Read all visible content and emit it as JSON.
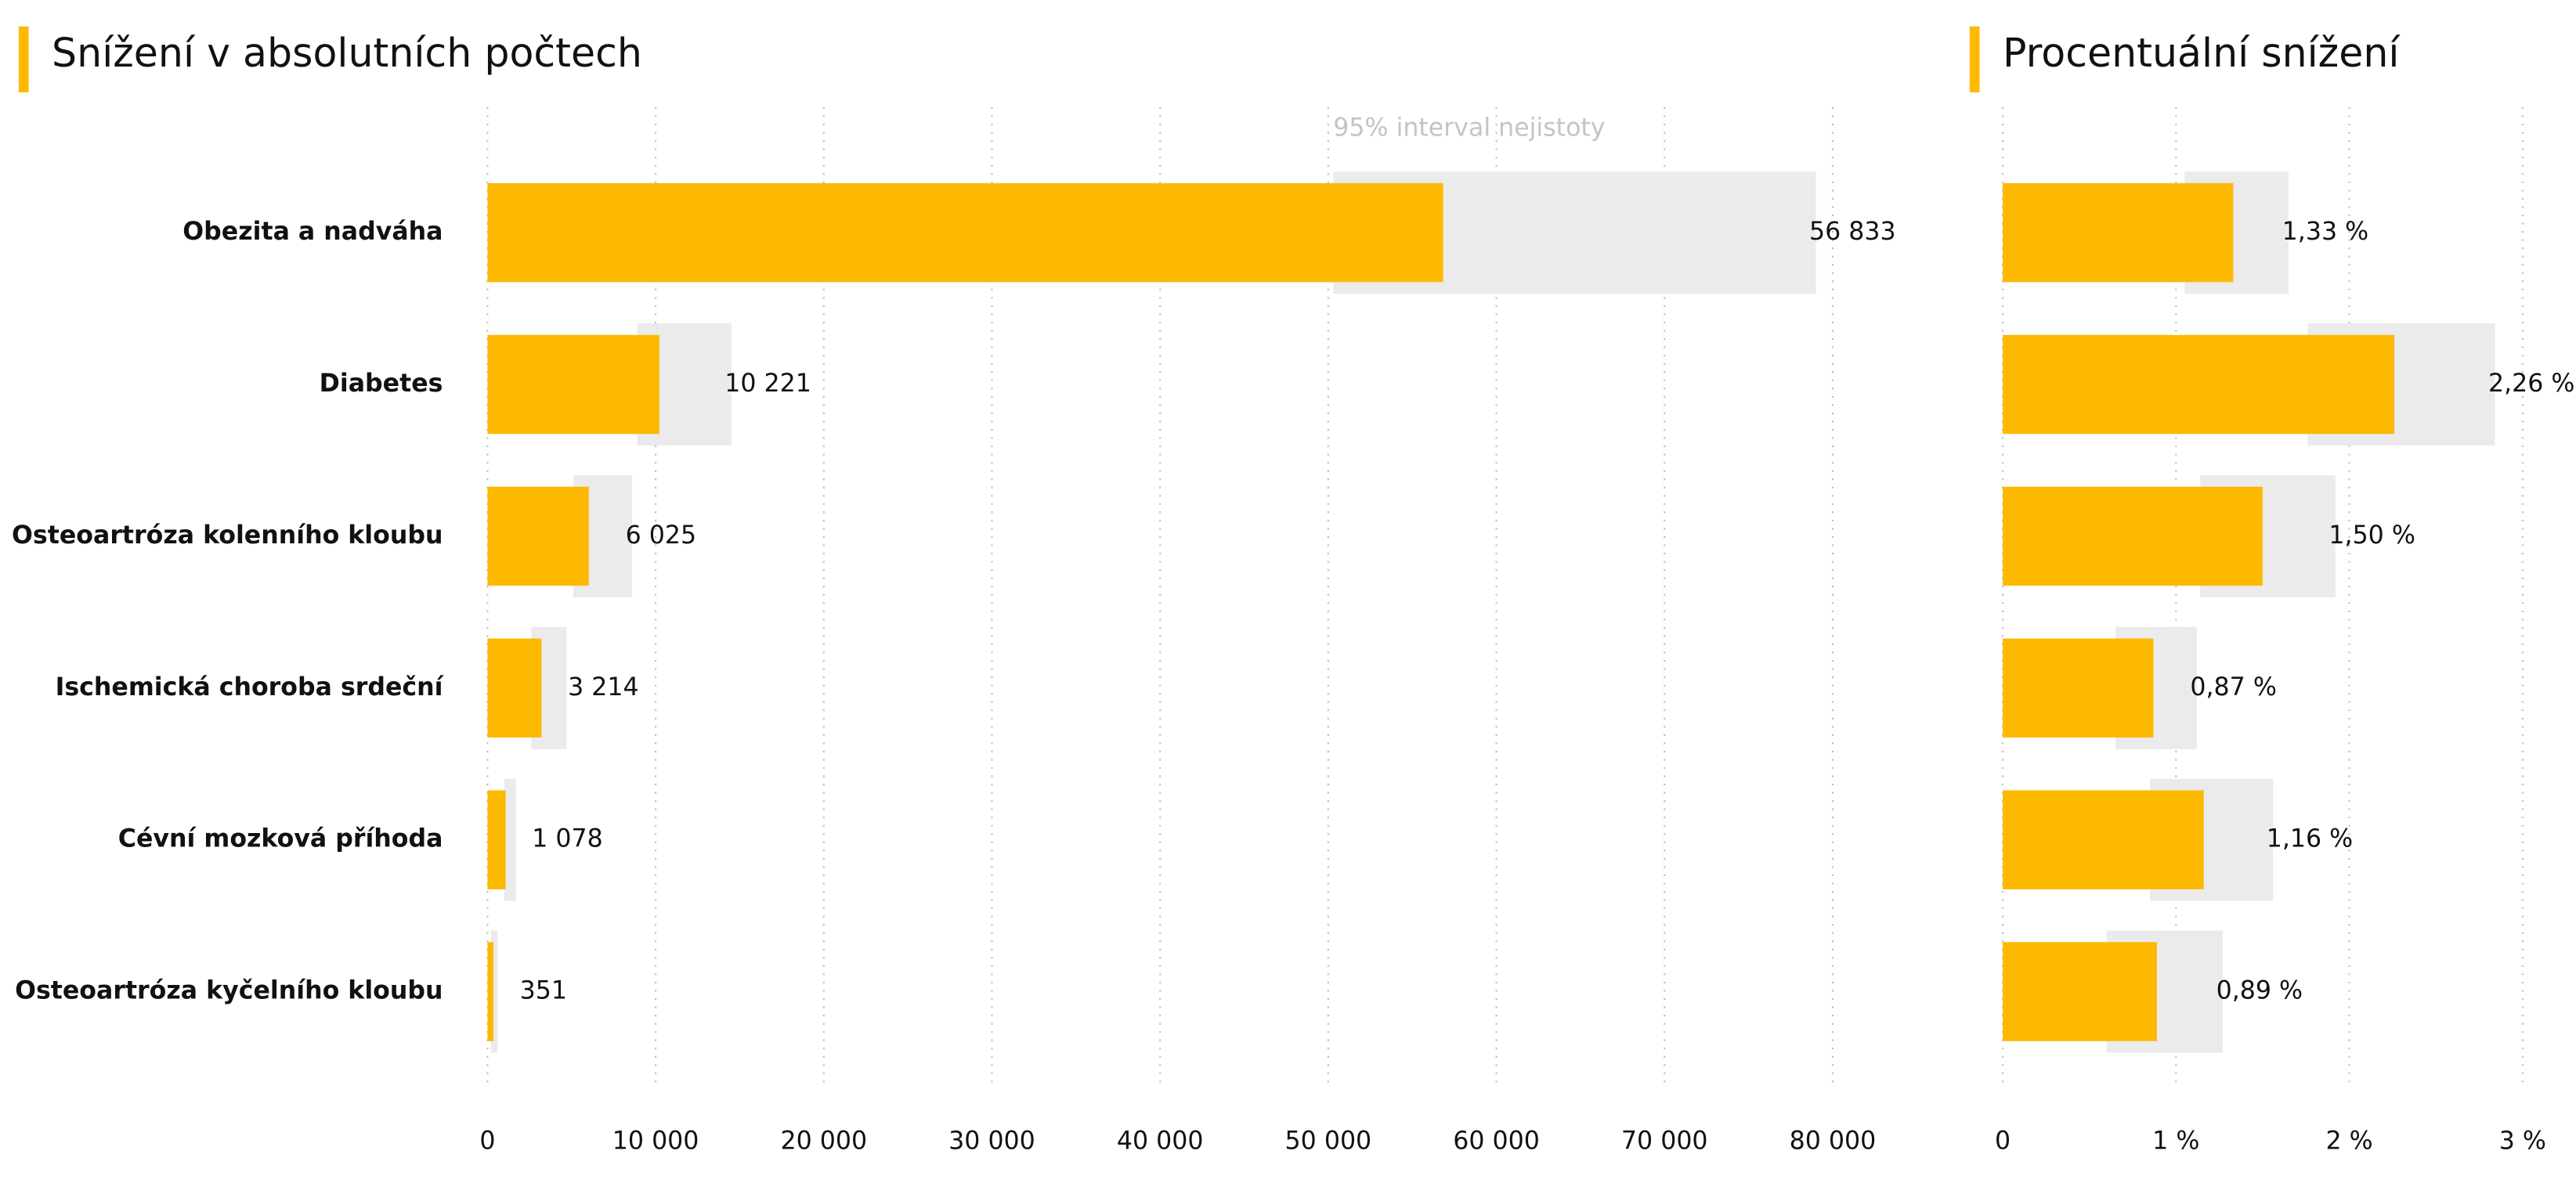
{
  "chart_data": [
    {
      "type": "bar",
      "orientation": "horizontal",
      "title": "Snížení v absolutních počtech",
      "annotation": "95% interval nejistoty",
      "color": "#fdb900",
      "interval_color": "#ebebeb",
      "categories": [
        "Obezita a nadváha",
        "Diabetes",
        "Osteoartróza kolenního kloubu",
        "Ischemická choroba srdeční",
        "Cévní mozková příhoda",
        "Osteoartróza kyčelního kloubu"
      ],
      "values": [
        56833,
        10221,
        6025,
        3214,
        1078,
        351
      ],
      "value_labels": [
        "56 833",
        "10 221",
        "6 025",
        "3 214",
        "1 078",
        "351"
      ],
      "intervals": [
        [
          50300,
          79000
        ],
        [
          8900,
          14500
        ],
        [
          5100,
          8600
        ],
        [
          2600,
          4700
        ],
        [
          1000,
          1700
        ],
        [
          200,
          600
        ]
      ],
      "xlim": [
        0,
        80000
      ],
      "xticks": [
        0,
        {
          "value": 10000,
          "label": "10 000"
        },
        {
          "value": 20000,
          "label": "20 000"
        },
        {
          "value": 30000,
          "label": "30 000"
        },
        {
          "value": 40000,
          "label": "40 000"
        },
        {
          "value": 50000,
          "label": "50 000"
        },
        {
          "value": 60000,
          "label": "60 000"
        },
        {
          "value": 70000,
          "label": "70 000"
        },
        {
          "value": 80000,
          "label": "80 000"
        }
      ],
      "grid": true
    },
    {
      "type": "bar",
      "orientation": "horizontal",
      "title": "Procentuální snížení",
      "color": "#fdb900",
      "interval_color": "#ebebeb",
      "values": [
        1.33,
        2.26,
        1.5,
        0.87,
        1.16,
        0.89
      ],
      "value_labels": [
        "1,33 %",
        "2,26 %",
        "1,50 %",
        "0,87 %",
        "1,16 %",
        "0,89 %"
      ],
      "intervals": [
        [
          1.05,
          1.65
        ],
        [
          1.76,
          2.84
        ],
        [
          1.14,
          1.92
        ],
        [
          0.65,
          1.12
        ],
        [
          0.85,
          1.56
        ],
        [
          0.6,
          1.27
        ]
      ],
      "xlim": [
        0,
        3
      ],
      "xticks": [
        0,
        {
          "value": 1,
          "label": "1 %"
        },
        {
          "value": 2,
          "label": "2 %"
        },
        {
          "value": 3,
          "label": "3 %"
        }
      ],
      "grid": true
    }
  ]
}
